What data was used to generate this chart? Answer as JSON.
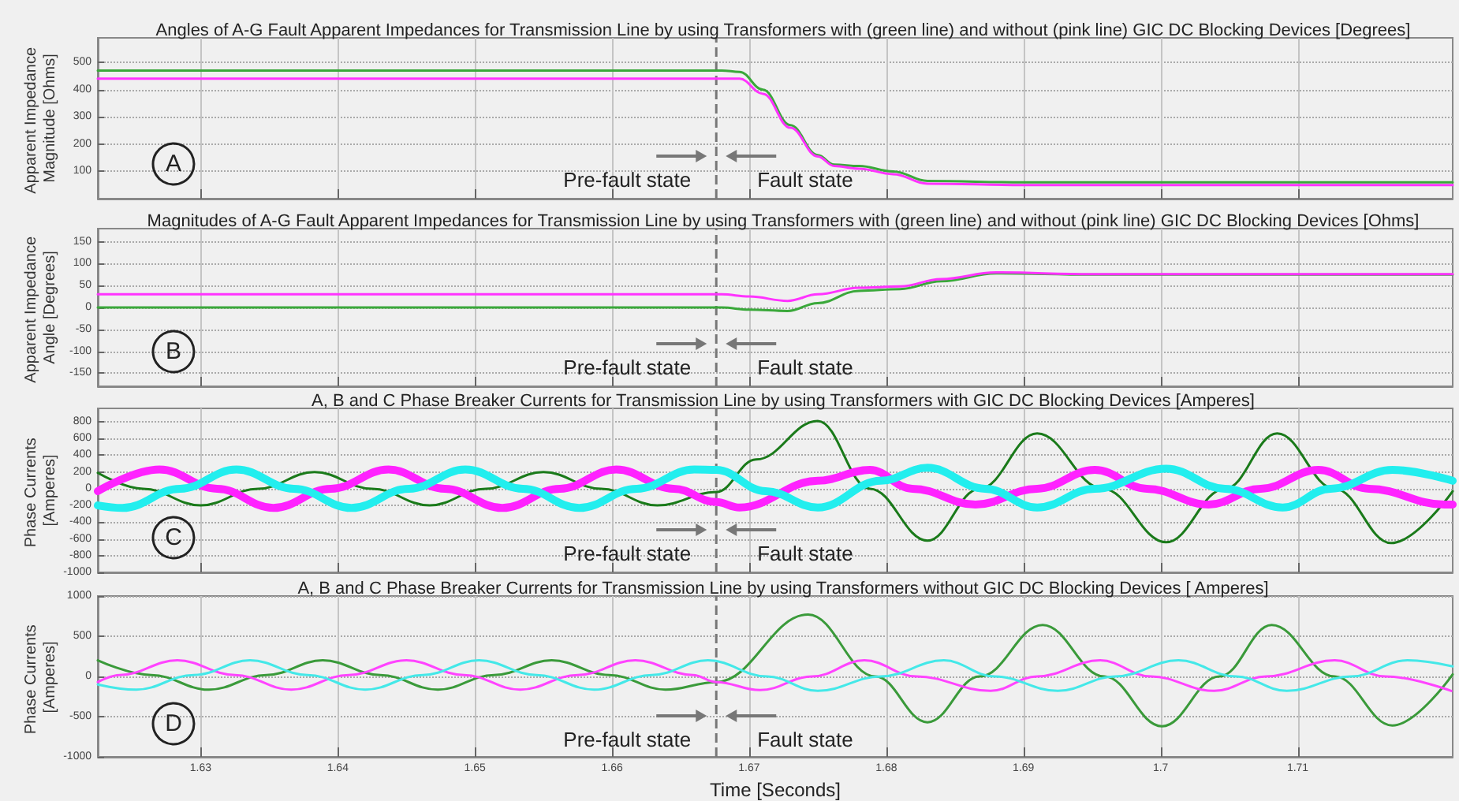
{
  "chart_data": [
    {
      "type": "line",
      "title": "Angles of A-G Fault Apparent Impedances for Transmission Line by using Transformers with (green line) and without (pink line) GIC DC Blocking Devices [Degrees]",
      "ylabel": "Apparent Impedance Magnitude [Ohms]",
      "xlim": [
        1.6225,
        1.7213
      ],
      "xticks": [
        1.63,
        1.64,
        1.65,
        1.66,
        1.67,
        1.68,
        1.69,
        1.7,
        1.71
      ],
      "ylim": [
        0,
        590
      ],
      "yticks": [
        100,
        200,
        300,
        400,
        500
      ],
      "grid": true,
      "tick_labels": "y",
      "series": [
        {
          "color": "#3aa83a",
          "x": [
            1.6225,
            1.668,
            1.6693,
            1.671,
            1.673,
            1.675,
            1.6762,
            1.678,
            1.6805,
            1.683,
            1.69,
            1.7,
            1.7213
          ],
          "values": [
            470,
            470,
            465,
            400,
            270,
            160,
            125,
            120,
            100,
            65,
            60,
            60,
            60
          ]
        },
        {
          "color": "#ff33ff",
          "x": [
            1.6225,
            1.668,
            1.6693,
            1.671,
            1.673,
            1.675,
            1.6762,
            1.678,
            1.6805,
            1.683,
            1.69,
            1.7,
            1.7213
          ],
          "values": [
            440,
            440,
            440,
            385,
            260,
            155,
            120,
            110,
            90,
            55,
            50,
            50,
            50
          ]
        }
      ],
      "ref_lines": [
        {
          "axis": "x",
          "value": 1.6676,
          "line_style": "dashed",
          "color": "#777777"
        }
      ],
      "annotations": [
        "A",
        "Pre-fault state",
        "Fault state"
      ]
    },
    {
      "type": "line",
      "title": "Magnitudes of A-G Fault Apparent Impedances for Transmission Line by using Transformers with (green line) and without (pink line) GIC DC Blocking Devices [Ohms]",
      "ylabel": "Apparent Impedance Angle [Degrees]",
      "xlim": [
        1.6225,
        1.7213
      ],
      "xticks": [
        1.63,
        1.64,
        1.65,
        1.66,
        1.67,
        1.68,
        1.69,
        1.7,
        1.71
      ],
      "ylim": [
        -180,
        180
      ],
      "yticks": [
        -150,
        -100,
        -50,
        0,
        50,
        100,
        150
      ],
      "grid": true,
      "tick_labels": "y",
      "series": [
        {
          "color": "#3aa83a",
          "x": [
            1.6225,
            1.668,
            1.67,
            1.6728,
            1.675,
            1.678,
            1.681,
            1.684,
            1.688,
            1.695,
            1.7213
          ],
          "values": [
            0,
            0,
            -5,
            -8,
            10,
            38,
            42,
            60,
            78,
            75,
            75
          ]
        },
        {
          "color": "#ff33ff",
          "x": [
            1.6225,
            1.668,
            1.67,
            1.6728,
            1.675,
            1.678,
            1.681,
            1.684,
            1.688,
            1.695,
            1.7213
          ],
          "values": [
            30,
            30,
            25,
            15,
            30,
            45,
            48,
            65,
            80,
            76,
            76
          ]
        }
      ],
      "ref_lines": [
        {
          "axis": "x",
          "value": 1.6676,
          "line_style": "dashed",
          "color": "#777777"
        }
      ],
      "annotations": [
        "B",
        "Pre-fault state",
        "Fault state"
      ]
    },
    {
      "type": "line",
      "title": "A, B and C Phase Breaker Currents for Transmission Line by using Transformers with GIC DC Blocking Devices [Amperes]",
      "ylabel": "Phase Currents [Amperes]",
      "xlim": [
        1.6225,
        1.7213
      ],
      "xticks": [
        1.63,
        1.64,
        1.65,
        1.66,
        1.67,
        1.68,
        1.69,
        1.7,
        1.71
      ],
      "ylim": [
        -1000,
        960
      ],
      "yticks": [
        -1000,
        -800,
        -600,
        -400,
        -200,
        0,
        200,
        400,
        600,
        800
      ],
      "grid": true,
      "tick_labels": "y",
      "series": [
        {
          "color": "#1a7a1a",
          "x": [
            1.6225,
            1.6258,
            1.63,
            1.6342,
            1.6383,
            1.6425,
            1.6467,
            1.6508,
            1.655,
            1.6592,
            1.6633,
            1.6676,
            1.6705,
            1.675,
            1.6788,
            1.683,
            1.6868,
            1.691,
            1.6958,
            1.7004,
            1.7047,
            1.7085,
            1.7127,
            1.7168,
            1.7213
          ],
          "values": [
            190,
            0,
            -200,
            0,
            200,
            0,
            -200,
            0,
            200,
            0,
            -200,
            -40,
            350,
            810,
            0,
            -620,
            0,
            660,
            0,
            -640,
            0,
            660,
            0,
            -650,
            -30
          ]
        },
        {
          "color": "#ff22ff",
          "x": [
            1.6225,
            1.627,
            1.6312,
            1.6353,
            1.6395,
            1.6437,
            1.6478,
            1.652,
            1.6562,
            1.6603,
            1.6645,
            1.6676,
            1.6693,
            1.675,
            1.6788,
            1.6819,
            1.6865,
            1.691,
            1.6952,
            1.699,
            1.7035,
            1.7073,
            1.7115,
            1.7152,
            1.7207,
            1.7213
          ],
          "values": [
            -30,
            230,
            0,
            -230,
            0,
            230,
            0,
            -230,
            0,
            230,
            0,
            -160,
            -225,
            95,
            225,
            0,
            -190,
            0,
            225,
            0,
            -190,
            0,
            225,
            0,
            -190,
            -190
          ]
        },
        {
          "color": "#22eeee",
          "x": [
            1.6225,
            1.6243,
            1.6285,
            1.6326,
            1.6368,
            1.641,
            1.6452,
            1.6493,
            1.6535,
            1.6576,
            1.6618,
            1.666,
            1.6676,
            1.6712,
            1.675,
            1.6796,
            1.683,
            1.6872,
            1.691,
            1.6952,
            1.7004,
            1.7047,
            1.7089,
            1.7124,
            1.7169,
            1.7213
          ],
          "values": [
            -200,
            -230,
            0,
            230,
            0,
            -230,
            0,
            230,
            0,
            -230,
            0,
            230,
            225,
            -30,
            -225,
            95,
            250,
            0,
            -225,
            0,
            240,
            0,
            -225,
            0,
            225,
            95
          ]
        }
      ],
      "ref_lines": [
        {
          "axis": "x",
          "value": 1.6676,
          "line_style": "dashed",
          "color": "#777777"
        }
      ],
      "annotations": [
        "C",
        "Pre-fault state",
        "Fault state"
      ]
    },
    {
      "type": "line",
      "title": "A, B and C Phase Breaker Currents for Transmission Line by using Transformers without GIC DC Blocking Devices [ Amperes]",
      "xlabel": "Time [Seconds]",
      "ylabel": "Phase Currents [Amperes]",
      "xlim": [
        1.6225,
        1.7213
      ],
      "xticks": [
        1.63,
        1.64,
        1.65,
        1.66,
        1.67,
        1.68,
        1.69,
        1.7,
        1.71
      ],
      "ylim": [
        -1000,
        1000
      ],
      "yticks": [
        -1000,
        -500,
        0,
        500,
        1000
      ],
      "grid": true,
      "series": [
        {
          "color": "#3a9a3a",
          "x": [
            1.6225,
            1.6264,
            1.6306,
            1.6348,
            1.6389,
            1.6431,
            1.6473,
            1.6514,
            1.6556,
            1.6598,
            1.6639,
            1.6676,
            1.6743,
            1.6792,
            1.683,
            1.6868,
            1.6914,
            1.6959,
            1.7001,
            1.7043,
            1.7081,
            1.7127,
            1.7169,
            1.7213
          ],
          "values": [
            200,
            18,
            -165,
            18,
            200,
            18,
            -165,
            18,
            200,
            18,
            -165,
            -70,
            770,
            0,
            -570,
            0,
            640,
            0,
            -620,
            0,
            640,
            0,
            -610,
            25
          ]
        },
        {
          "color": "#ff44ff",
          "x": [
            1.6225,
            1.6241,
            1.6283,
            1.6325,
            1.6366,
            1.6408,
            1.645,
            1.6492,
            1.6533,
            1.6575,
            1.6617,
            1.6659,
            1.6676,
            1.6708,
            1.6746,
            1.6784,
            1.6822,
            1.6876,
            1.691,
            1.6956,
            1.6993,
            1.7039,
            1.7077,
            1.7127,
            1.7164,
            1.7212
          ],
          "values": [
            -70,
            18,
            200,
            18,
            -165,
            18,
            200,
            18,
            -165,
            18,
            200,
            18,
            -70,
            -170,
            0,
            200,
            0,
            -180,
            0,
            200,
            0,
            -180,
            0,
            200,
            0,
            -180
          ]
        },
        {
          "color": "#44e8e8",
          "x": [
            1.6225,
            1.6253,
            1.6295,
            1.6336,
            1.6378,
            1.642,
            1.6462,
            1.6503,
            1.6545,
            1.6587,
            1.6629,
            1.667,
            1.6713,
            1.675,
            1.6796,
            1.6842,
            1.6879,
            1.6925,
            1.6967,
            1.7013,
            1.7055,
            1.7092,
            1.7139,
            1.718,
            1.7213
          ],
          "values": [
            -100,
            -165,
            18,
            200,
            18,
            -165,
            18,
            200,
            18,
            -165,
            18,
            200,
            0,
            -180,
            0,
            200,
            0,
            -180,
            0,
            200,
            0,
            -180,
            0,
            200,
            125
          ]
        }
      ],
      "ref_lines": [
        {
          "axis": "x",
          "value": 1.6676,
          "line_style": "dashed",
          "color": "#777777"
        }
      ],
      "annotations": [
        "D",
        "Pre-fault state",
        "Fault state"
      ]
    }
  ]
}
